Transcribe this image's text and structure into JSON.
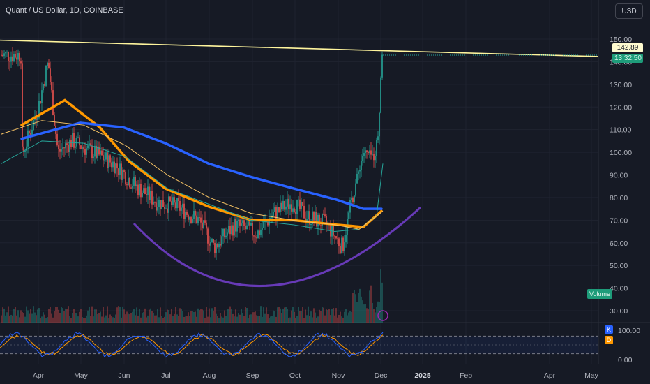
{
  "header": {
    "title": "Quant / US Dollar, 1D, COINBASE"
  },
  "toolbar": {
    "currency": "USD"
  },
  "price_labels": {
    "last_price": "142.89",
    "countdown": "13:32:50"
  },
  "indicators": {
    "volume_label": "Volume",
    "k_label": "K",
    "d_label": "D"
  },
  "colors": {
    "up": "#26a69a",
    "down": "#ef5350",
    "resistance_line": "#fff59d",
    "ma_fast": "#ff9800",
    "ma_slow": "#2962ff",
    "cup_arc": "#673ab7",
    "stoch_k": "#2962ff",
    "stoch_d": "#ff9800"
  },
  "chart_data": {
    "type": "candlestick",
    "symbol": "Quant / US Dollar",
    "interval": "1D",
    "exchange": "COINBASE",
    "y_ticks": [
      "150.00",
      "140.00",
      "130.00",
      "120.00",
      "110.00",
      "100.00",
      "90.00",
      "80.00",
      "70.00",
      "60.00",
      "50.00",
      "40.00",
      "30.00"
    ],
    "ylim": [
      25,
      155
    ],
    "x_ticks": [
      "Apr",
      "May",
      "Jun",
      "Jul",
      "Aug",
      "Sep",
      "Oct",
      "Nov",
      "Dec",
      "2025",
      "Feb",
      "Apr",
      "May"
    ],
    "price_path": {
      "description_free_points_date_close": [
        [
          "Mar 20",
          98
        ],
        [
          "Apr 01",
          120
        ],
        [
          "Apr 08",
          140
        ],
        [
          "Apr 15",
          100
        ],
        [
          "Apr 25",
          105
        ],
        [
          "May 10",
          100
        ],
        [
          "May 25",
          95
        ],
        [
          "Jun 10",
          85
        ],
        [
          "Jun 25",
          78
        ],
        [
          "Jul 10",
          76
        ],
        [
          "Jul 25",
          70
        ],
        [
          "Aug 05",
          58
        ],
        [
          "Aug 20",
          68
        ],
        [
          "Sep 05",
          64
        ],
        [
          "Sep 15",
          72
        ],
        [
          "Sep 30",
          78
        ],
        [
          "Oct 10",
          72
        ],
        [
          "Oct 25",
          68
        ],
        [
          "Nov 05",
          58
        ],
        [
          "Nov 12",
          80
        ],
        [
          "Nov 20",
          100
        ],
        [
          "Nov 28",
          98
        ],
        [
          "Dec 01",
          110
        ],
        [
          "Dec 03",
          143
        ]
      ]
    },
    "moving_averages": [
      {
        "color": "#ff9800",
        "points": [
          [
            "Mar 20",
            112
          ],
          [
            "Apr 20",
            123
          ],
          [
            "May 15",
            111
          ],
          [
            "Jun 05",
            96
          ],
          [
            "Jul 01",
            84
          ],
          [
            "Aug 01",
            76
          ],
          [
            "Sep 01",
            70
          ],
          [
            "Oct 01",
            70
          ],
          [
            "Nov 01",
            68
          ],
          [
            "Nov 20",
            67
          ],
          [
            "Dec 03",
            74
          ]
        ]
      },
      {
        "color": "#2962ff",
        "points": [
          [
            "Mar 20",
            106
          ],
          [
            "May 01",
            113
          ],
          [
            "Jun 01",
            111
          ],
          [
            "Jul 01",
            104
          ],
          [
            "Aug 01",
            95
          ],
          [
            "Sep 01",
            89
          ],
          [
            "Oct 01",
            84
          ],
          [
            "Nov 01",
            79
          ],
          [
            "Nov 20",
            75
          ],
          [
            "Dec 03",
            75
          ]
        ]
      }
    ],
    "resistance_line": [
      [
        "Mar 20",
        149
      ],
      [
        "May 20",
        143
      ]
    ],
    "cup_arc": {
      "from": [
        "Jun 20",
        68
      ],
      "bottom": [
        "Sep 15",
        42
      ],
      "to": [
        "Dec 20",
        78
      ]
    },
    "stoch_ticks": [
      "100.00",
      "0.00"
    ],
    "stoch_levels": [
      80,
      20
    ]
  }
}
